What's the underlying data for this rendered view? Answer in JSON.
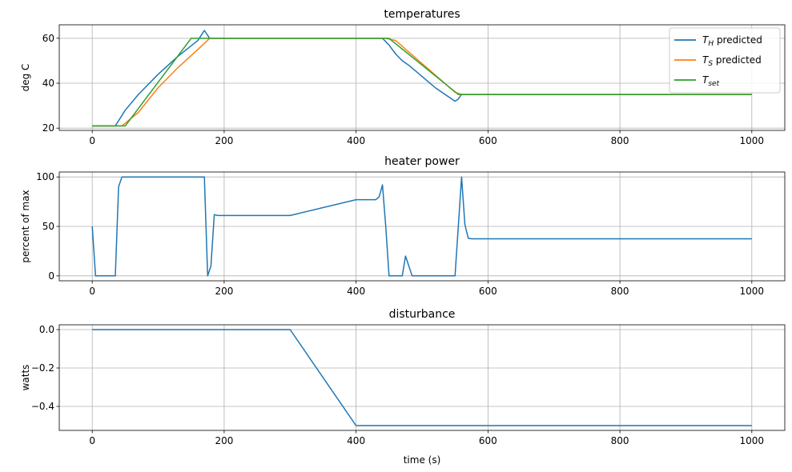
{
  "chart_data": [
    {
      "type": "line",
      "title": "temperatures",
      "xlabel": "",
      "ylabel": "deg C",
      "xlim": [
        -50,
        1050
      ],
      "ylim": [
        19,
        66
      ],
      "xticks": [
        0,
        200,
        400,
        600,
        800,
        1000
      ],
      "yticks": [
        20,
        40,
        60
      ],
      "grid": true,
      "legend": "top-right",
      "series": [
        {
          "name": "T_H predicted",
          "legend_main": "T",
          "legend_sub": "H",
          "legend_rest": " predicted",
          "color": "#1f77b4",
          "x": [
            0,
            35,
            50,
            70,
            100,
            130,
            160,
            170,
            178,
            440,
            450,
            460,
            470,
            480,
            500,
            520,
            540,
            550,
            555,
            560,
            1000
          ],
          "y": [
            21,
            21,
            28,
            35,
            44,
            52,
            59,
            63.5,
            60,
            60,
            57,
            53,
            50,
            48,
            43,
            38,
            34,
            32,
            33,
            35,
            35
          ]
        },
        {
          "name": "T_S predicted",
          "legend_main": "T",
          "legend_sub": "S",
          "legend_rest": " predicted",
          "color": "#ff7f0e",
          "x": [
            0,
            45,
            70,
            100,
            130,
            160,
            178,
            445,
            460,
            550,
            560,
            1000
          ],
          "y": [
            21,
            21,
            27,
            38,
            47,
            55,
            60,
            60,
            59,
            36,
            35,
            35
          ]
        },
        {
          "name": "T_set",
          "legend_main": "T",
          "legend_sub": "set",
          "legend_rest": "",
          "color": "#2ca02c",
          "x": [
            0,
            50,
            150,
            440,
            450,
            555,
            1000
          ],
          "y": [
            21,
            21,
            60,
            60,
            60,
            35,
            35
          ]
        }
      ]
    },
    {
      "type": "line",
      "title": "heater power",
      "xlabel": "",
      "ylabel": "percent of max",
      "xlim": [
        -50,
        1050
      ],
      "ylim": [
        -5,
        105
      ],
      "xticks": [
        0,
        200,
        400,
        600,
        800,
        1000
      ],
      "yticks": [
        0,
        50,
        100
      ],
      "grid": true,
      "series": [
        {
          "name": "",
          "color": "#1f77b4",
          "x": [
            0,
            5,
            35,
            40,
            45,
            170,
            175,
            180,
            185,
            190,
            300,
            400,
            430,
            435,
            440,
            445,
            450,
            470,
            475,
            485,
            550,
            560,
            565,
            570,
            575,
            1000
          ],
          "y": [
            50,
            0,
            0,
            90,
            100,
            100,
            0,
            10,
            62,
            61,
            61,
            77,
            77,
            80,
            92,
            50,
            0,
            0,
            20,
            0,
            0,
            100,
            52,
            38,
            37.5,
            37.5
          ]
        }
      ]
    },
    {
      "type": "line",
      "title": "disturbance",
      "xlabel": "time (s)",
      "ylabel": "watts",
      "xlim": [
        -50,
        1050
      ],
      "ylim": [
        -0.525,
        0.025
      ],
      "xticks": [
        0,
        200,
        400,
        600,
        800,
        1000
      ],
      "yticks": [
        0.0,
        -0.2,
        -0.4
      ],
      "ytick_labels": [
        "0.0",
        "−0.2",
        "−0.4"
      ],
      "grid": true,
      "series": [
        {
          "name": "",
          "color": "#1f77b4",
          "x": [
            0,
            300,
            400,
            1000
          ],
          "y": [
            0,
            0,
            -0.5,
            -0.5
          ]
        }
      ]
    }
  ]
}
